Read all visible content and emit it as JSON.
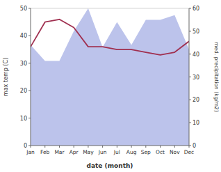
{
  "chart_data": {
    "type": "line",
    "xlabel": "date (month)",
    "ylabel": "max temp (C)",
    "y2label": "med. precipitation (kg/m2)",
    "categories": [
      "Jan",
      "Feb",
      "Mar",
      "Apr",
      "May",
      "Jun",
      "Jul",
      "Aug",
      "Sep",
      "Oct",
      "Nov",
      "Dec"
    ],
    "series": [
      {
        "type": "line",
        "color": "#a03050",
        "values": [
          36,
          45,
          46,
          43,
          36,
          36,
          35,
          35,
          34,
          33,
          34,
          38
        ]
      },
      {
        "type": "area",
        "axis": "y2",
        "color": "#b0b8e8",
        "values": [
          44,
          37,
          37,
          50,
          60,
          43,
          54,
          44,
          55,
          55,
          57,
          42
        ]
      }
    ],
    "ylim": [
      0,
      50
    ],
    "yticks": [
      0,
      10,
      20,
      30,
      40,
      50
    ],
    "y2lim": [
      0,
      60
    ],
    "y2ticks": [
      0,
      10,
      20,
      30,
      40,
      50,
      60
    ]
  }
}
